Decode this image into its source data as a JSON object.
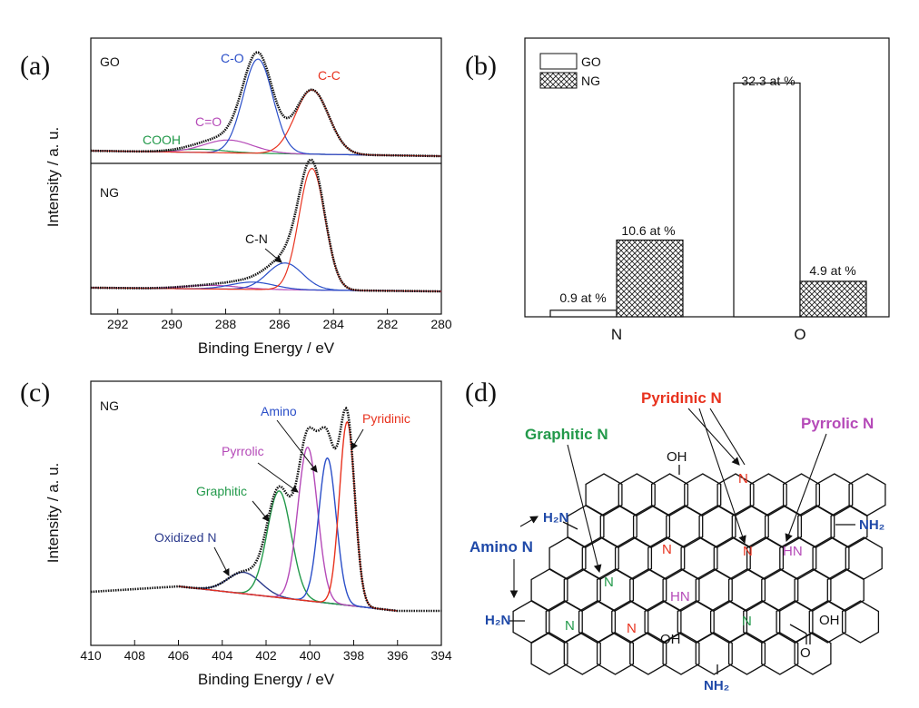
{
  "colors": {
    "black": "#111111",
    "blue": "#2a4ec8",
    "red": "#e8321e",
    "magenta": "#b54ab8",
    "green": "#22994a",
    "navy": "#2b3a8c",
    "amino_blue": "#1f49a8"
  },
  "chart_data": [
    {
      "type": "line",
      "panel": "(a)",
      "title": "",
      "xlabel": "Binding Energy / eV",
      "ylabel": "Intensity / a. u.",
      "xlim": [
        293,
        280
      ],
      "x_ticks": [
        "292",
        "290",
        "288",
        "286",
        "284",
        "282",
        "280"
      ],
      "x_tick_values": [
        292,
        290,
        288,
        286,
        284,
        282,
        280
      ],
      "subplots": [
        {
          "name": "GO",
          "baseline": 0.05,
          "peaks": [
            {
              "name": "COOH",
              "center": 288.9,
              "amp": 0.03,
              "width": 0.9,
              "color_key": "green"
            },
            {
              "name": "C=O",
              "center": 287.9,
              "amp": 0.12,
              "width": 0.9,
              "color_key": "magenta"
            },
            {
              "name": "C-O",
              "center": 286.8,
              "amp": 0.88,
              "width": 0.55,
              "color_key": "blue"
            },
            {
              "name": "C-C",
              "center": 284.8,
              "amp": 0.6,
              "width": 0.62,
              "color_key": "red"
            }
          ]
        },
        {
          "name": "NG",
          "baseline": 0.03,
          "peaks": [
            {
              "name": "",
              "center": 288.5,
              "amp": 0.03,
              "width": 1.0,
              "color_key": "magenta"
            },
            {
              "name": "",
              "center": 287.0,
              "amp": 0.06,
              "width": 0.8,
              "color_key": "blue"
            },
            {
              "name": "C-N",
              "center": 285.8,
              "amp": 0.22,
              "width": 0.65,
              "color_key": "blue"
            },
            {
              "name": "",
              "center": 284.8,
              "amp": 1.0,
              "width": 0.48,
              "color_key": "red"
            }
          ]
        }
      ],
      "annotations": [
        "GO",
        "NG",
        "C-O",
        "C-C",
        "C=O",
        "COOH",
        "C-N"
      ]
    },
    {
      "type": "bar",
      "panel": "(b)",
      "title": "",
      "categories": [
        "N",
        "O"
      ],
      "series": [
        {
          "name": "GO",
          "values": [
            0.9,
            32.3
          ],
          "pattern": "open"
        },
        {
          "name": "NG",
          "values": [
            10.6,
            4.9
          ],
          "pattern": "crosshatch"
        }
      ],
      "data_labels": [
        [
          "0.9 at %",
          "32.3 at %"
        ],
        [
          "10.6 at %",
          "4.9 at %"
        ]
      ],
      "ylim": [
        0,
        38
      ],
      "legend": "top-left"
    },
    {
      "type": "line",
      "panel": "(c)",
      "title": "",
      "xlabel": "Binding Energy / eV",
      "ylabel": "Intensity / a. u.",
      "xlim": [
        410,
        394
      ],
      "x_ticks": [
        "410",
        "408",
        "406",
        "404",
        "402",
        "400",
        "398",
        "396",
        "394"
      ],
      "x_tick_values": [
        410,
        408,
        406,
        404,
        402,
        400,
        398,
        396,
        394
      ],
      "sample": "NG",
      "baseline_start": [
        406.0,
        0.0
      ],
      "baseline_end": [
        396.0,
        0.0
      ],
      "peaks": [
        {
          "name": "Oxidized N",
          "center": 403.0,
          "amp": 0.1,
          "width": 0.75,
          "color_key": "navy"
        },
        {
          "name": "Graphitic",
          "center": 401.4,
          "amp": 0.5,
          "width": 0.55,
          "color_key": "green"
        },
        {
          "name": "Pyrrolic",
          "center": 400.1,
          "amp": 0.72,
          "width": 0.45,
          "color_key": "magenta"
        },
        {
          "name": "Amino",
          "center": 399.2,
          "amp": 0.68,
          "width": 0.4,
          "color_key": "blue"
        },
        {
          "name": "Pyridinic",
          "center": 398.3,
          "amp": 0.86,
          "width": 0.35,
          "color_key": "red"
        }
      ]
    }
  ],
  "panel_a": {
    "label": "(a)",
    "ylabel": "Intensity / a. u.",
    "xlabel": "Binding Energy / eV",
    "go": "GO",
    "ng": "NG",
    "co": "C-O",
    "cc": "C-C",
    "c_o_double": "C=O",
    "cooh": "COOH",
    "cn": "C-N",
    "ticks": [
      "292",
      "290",
      "288",
      "286",
      "284",
      "282",
      "280"
    ]
  },
  "panel_b": {
    "label": "(b)",
    "legend_go": "GO",
    "legend_ng": "NG",
    "cat_n": "N",
    "cat_o": "O",
    "lbl_go_n": "0.9 at %",
    "lbl_ng_n": "10.6 at %",
    "lbl_go_o": "32.3 at %",
    "lbl_ng_o": "4.9 at %"
  },
  "panel_c": {
    "label": "(c)",
    "ylabel": "Intensity / a. u.",
    "xlabel": "Binding Energy / eV",
    "ng": "NG",
    "amino": "Amino",
    "pyridinic": "Pyridinic",
    "pyrrolic": "Pyrrolic",
    "graphitic": "Graphitic",
    "oxidized": "Oxidized N",
    "ticks": [
      "410",
      "408",
      "406",
      "404",
      "402",
      "400",
      "398",
      "396",
      "394"
    ]
  },
  "panel_d": {
    "label": "(d)",
    "pyridinic_n": "Pyridinic N",
    "graphitic_n": "Graphitic N",
    "pyrrolic_n": "Pyrrolic N",
    "amino_n": "Amino N",
    "oh": "OH",
    "h2n": "H₂N",
    "nh2": "NH₂",
    "n": "N",
    "hn": "HN",
    "cooh_o": "O"
  }
}
